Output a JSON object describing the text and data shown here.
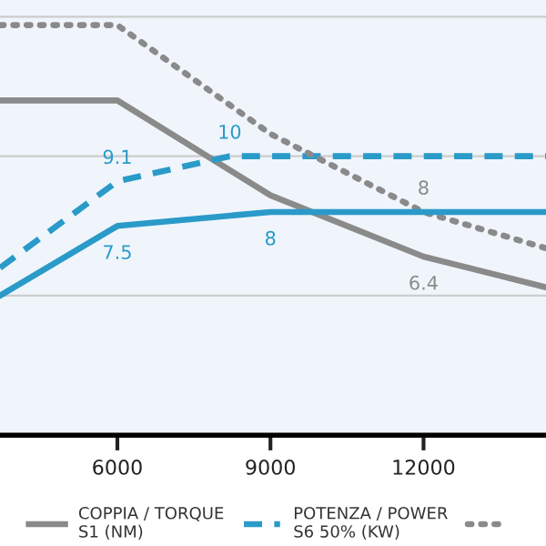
{
  "chart_data": {
    "type": "line",
    "xlim": [
      3700,
      14400
    ],
    "xticks": [
      6000,
      9000,
      12000
    ],
    "ylim": [
      0,
      15.6
    ],
    "yticks": [
      {
        "value": 5,
        "label": null
      },
      {
        "value": 10,
        "label": null
      },
      {
        "value": 15,
        "label": null
      }
    ],
    "grid": "y",
    "legend": "bottom",
    "tick_labels": "x",
    "series": [
      {
        "name": "COPPIA / TORQUE\nS1 (NM)",
        "color": "#8a8a8a",
        "line_style": "solid",
        "x": [
          3700,
          6000,
          9000,
          12000,
          14400
        ],
        "values": [
          12.0,
          12.0,
          8.6,
          6.4,
          5.3
        ],
        "value_labels": [
          null,
          null,
          null,
          "6.4",
          null
        ]
      },
      {
        "name": "POTENZA / POWER\nS6 50% (KW)",
        "color": "#2a9ac9",
        "line_style": "dashed",
        "x": [
          3700,
          6000,
          8200,
          14400
        ],
        "values": [
          6.0,
          9.1,
          10,
          10
        ],
        "value_labels": [
          null,
          "9.1",
          "10",
          null
        ]
      },
      {
        "color": "#8a8a8a",
        "line_style": "dotted",
        "x": [
          3700,
          6000,
          9000,
          12000,
          14400
        ],
        "values": [
          14.7,
          14.7,
          10.8,
          8,
          6.7
        ],
        "value_labels": [
          null,
          null,
          null,
          "8",
          null
        ]
      },
      {
        "color": "#2a9ac9",
        "line_style": "solid",
        "x": [
          3700,
          6000,
          9000,
          14400
        ],
        "values": [
          5.0,
          7.5,
          8,
          8
        ],
        "value_labels": [
          null,
          "7.5",
          "8",
          null
        ]
      }
    ]
  }
}
